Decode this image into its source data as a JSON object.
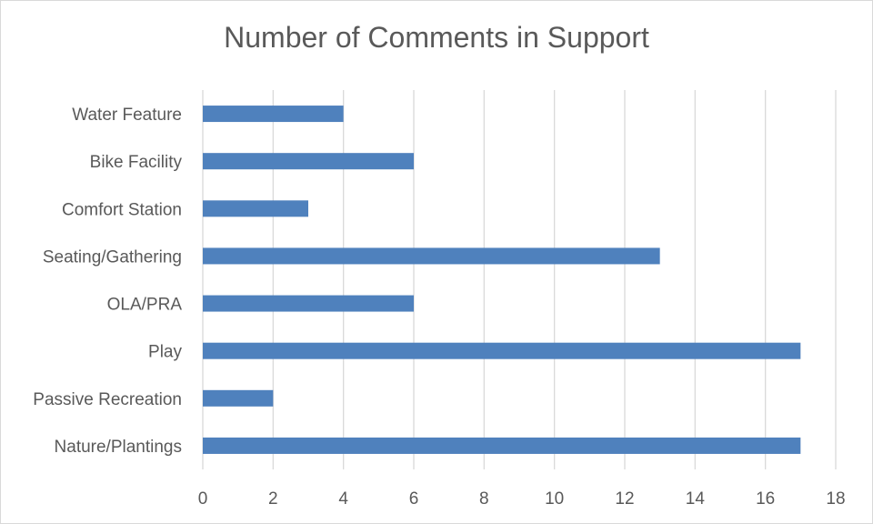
{
  "chart_data": {
    "type": "bar",
    "orientation": "horizontal",
    "title": "Number of Comments in Support",
    "categories": [
      "Water Feature",
      "Bike Facility",
      "Comfort Station",
      "Seating/Gathering",
      "OLA/PRA",
      "Play",
      "Passive Recreation",
      "Nature/Plantings"
    ],
    "values": [
      4,
      6,
      3,
      13,
      6,
      17,
      2,
      17
    ],
    "xlim": [
      0,
      18
    ],
    "xticks": [
      0,
      2,
      4,
      6,
      8,
      10,
      12,
      14,
      16,
      18
    ],
    "xtick_labels": [
      "0",
      "2",
      "4",
      "6",
      "8",
      "10",
      "12",
      "14",
      "16",
      "18"
    ],
    "xlabel": "",
    "ylabel": "",
    "grid": "vertical",
    "legend": "none",
    "bar_color": "#4f81bd",
    "grid_color": "#d9d9d9",
    "text_color": "#595959"
  }
}
